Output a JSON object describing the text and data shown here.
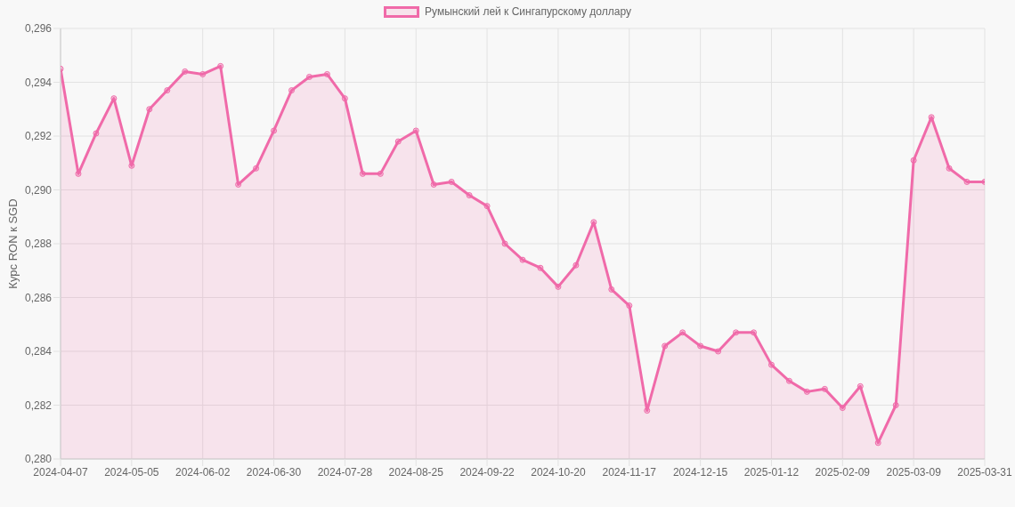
{
  "chart_data": {
    "type": "area",
    "ylabel": "Курс RON к SGD",
    "categories": [
      "2024-04-07",
      null,
      null,
      null,
      "2024-05-05",
      null,
      null,
      null,
      "2024-06-02",
      null,
      null,
      null,
      "2024-06-30",
      null,
      null,
      null,
      "2024-07-28",
      null,
      null,
      null,
      "2024-08-25",
      null,
      null,
      null,
      "2024-09-22",
      null,
      null,
      null,
      "2024-10-20",
      null,
      null,
      null,
      "2024-11-17",
      null,
      null,
      null,
      "2024-12-15",
      null,
      null,
      null,
      "2025-01-12",
      null,
      null,
      null,
      "2025-02-09",
      null,
      null,
      null,
      "2025-03-09",
      null,
      null,
      null,
      "2025-03-31"
    ],
    "series": [
      {
        "name": "Румынский лей к Сингапурскому доллару",
        "color": "#f06aa9",
        "values": [
          0.2945,
          0.2906,
          0.2921,
          0.2934,
          0.2909,
          0.293,
          0.2937,
          0.2944,
          0.2943,
          0.2946,
          0.2902,
          0.2908,
          0.2922,
          0.2937,
          0.2942,
          0.2943,
          0.2934,
          0.2906,
          0.2906,
          0.2918,
          0.2922,
          0.2902,
          0.2903,
          0.2898,
          0.2894,
          0.288,
          0.2874,
          0.2871,
          0.2864,
          0.2872,
          0.2888,
          0.2863,
          0.2857,
          0.2818,
          0.2842,
          0.2847,
          0.2842,
          0.284,
          0.2847,
          0.2847,
          0.2835,
          0.2829,
          0.2825,
          0.2826,
          0.2819,
          0.2827,
          0.2806,
          0.282,
          0.2911,
          0.2927,
          0.2908,
          0.2903,
          0.2903
        ]
      }
    ],
    "ylim": [
      0.28,
      0.296
    ],
    "yticks": [
      {
        "value": 0.28,
        "label": "0,280"
      },
      {
        "value": 0.282,
        "label": "0,282"
      },
      {
        "value": 0.284,
        "label": "0,284"
      },
      {
        "value": 0.286,
        "label": "0,286"
      },
      {
        "value": 0.288,
        "label": "0,288"
      },
      {
        "value": 0.29,
        "label": "0,290"
      },
      {
        "value": 0.292,
        "label": "0,292"
      },
      {
        "value": 0.294,
        "label": "0,294"
      },
      {
        "value": 0.296,
        "label": "0,296"
      }
    ],
    "grid": true,
    "legend": "top",
    "marker": "circle",
    "line_style": "solid"
  }
}
